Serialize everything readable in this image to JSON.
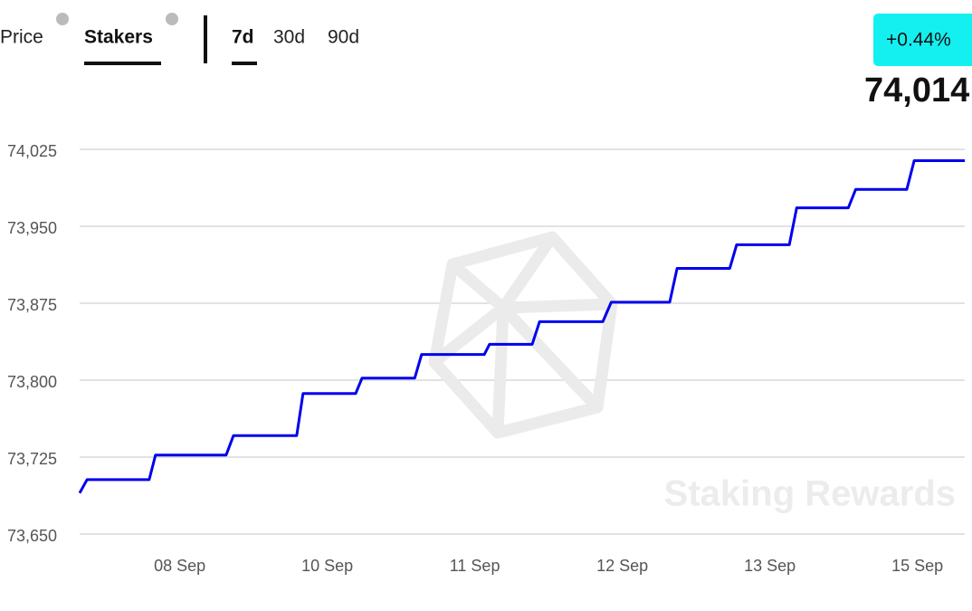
{
  "header": {
    "tabs": [
      "Price",
      "Stakers"
    ],
    "ranges": [
      "7d",
      "30d",
      "90d"
    ],
    "change": "+0.44%",
    "current": "74,014"
  },
  "chart_data": {
    "type": "line",
    "watermark": "Staking Rewards",
    "color": "#0000ee",
    "x": [
      0,
      1.4,
      13.2,
      14.4,
      27.8,
      29.2,
      41.2,
      42.4,
      52.4,
      53.6,
      63.6,
      64.9,
      76.8,
      77.8,
      85.9,
      87.3,
      99.3,
      100.9,
      112,
      113.4,
      123.4,
      124.7,
      134.7,
      136.1,
      145.9,
      147.3,
      157,
      158.4,
      168
    ],
    "values": [
      73690,
      73703,
      73703,
      73727,
      73727,
      73746,
      73746,
      73787,
      73787,
      73802,
      73802,
      73825,
      73825,
      73835,
      73835,
      73857,
      73857,
      73876,
      73876,
      73909,
      73909,
      73932,
      73932,
      73968,
      73968,
      73986,
      73986,
      74014,
      74014
    ],
    "xlim": [
      0,
      168
    ],
    "xticks": [
      {
        "value": 19,
        "label": "08 Sep"
      },
      {
        "value": 47,
        "label": "10 Sep"
      },
      {
        "value": 75,
        "label": "11 Sep"
      },
      {
        "value": 103,
        "label": "12 Sep"
      },
      {
        "value": 131,
        "label": "13 Sep"
      },
      {
        "value": 159,
        "label": "15 Sep"
      }
    ],
    "ylim": [
      73650,
      74025
    ],
    "yticks": [
      {
        "value": 73650,
        "label": "73,650"
      },
      {
        "value": 73725,
        "label": "73,725"
      },
      {
        "value": 73800,
        "label": "73,800"
      },
      {
        "value": 73875,
        "label": "73,875"
      },
      {
        "value": 73950,
        "label": "73,950"
      },
      {
        "value": 74025,
        "label": "74,025"
      }
    ],
    "grid": true
  }
}
